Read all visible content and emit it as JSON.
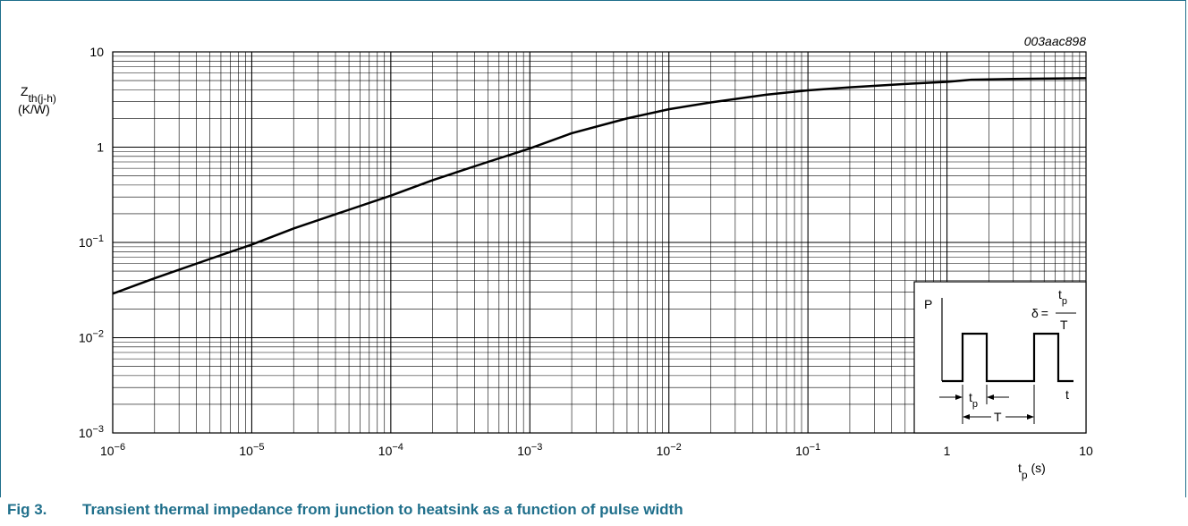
{
  "figure": {
    "id": "003aac898",
    "caption_label": "Fig 3.",
    "caption_text": "Transient thermal impedance from junction to heatsink as a function of pulse width",
    "caption_color": "#1f6f8b"
  },
  "chart_data": {
    "type": "line",
    "title": "",
    "xlabel": {
      "main": "t",
      "sub": "p",
      "unit": " (s)"
    },
    "ylabel": {
      "main": "Z",
      "sub": "th(j-h)",
      "unit": "(K/W)"
    },
    "x_scale": "log",
    "y_scale": "log",
    "xlim": [
      1e-06,
      10
    ],
    "ylim": [
      0.001,
      10
    ],
    "grid": true,
    "x_ticks": [
      {
        "value": 1e-06,
        "base": "10",
        "exp": "−6"
      },
      {
        "value": 1e-05,
        "base": "10",
        "exp": "−5"
      },
      {
        "value": 0.0001,
        "base": "10",
        "exp": "−4"
      },
      {
        "value": 0.001,
        "base": "10",
        "exp": "−3"
      },
      {
        "value": 0.01,
        "base": "10",
        "exp": "−2"
      },
      {
        "value": 0.1,
        "base": "10",
        "exp": "−1"
      },
      {
        "value": 1,
        "base": "1",
        "exp": ""
      },
      {
        "value": 10,
        "base": "10",
        "exp": ""
      }
    ],
    "y_ticks": [
      {
        "value": 0.001,
        "base": "10",
        "exp": "−3"
      },
      {
        "value": 0.01,
        "base": "10",
        "exp": "−2"
      },
      {
        "value": 0.1,
        "base": "10",
        "exp": "−1"
      },
      {
        "value": 1,
        "base": "1",
        "exp": ""
      },
      {
        "value": 10,
        "base": "10",
        "exp": ""
      }
    ],
    "series": [
      {
        "x": [
          1e-06,
          2e-06,
          5e-06,
          1e-05,
          2e-05,
          5e-05,
          0.0001,
          0.0002,
          0.0005,
          0.001,
          0.002,
          0.005,
          0.01,
          0.02,
          0.05,
          0.1,
          0.2,
          0.5,
          1,
          1.5,
          3,
          10
        ],
        "y": [
          0.029,
          0.042,
          0.067,
          0.095,
          0.14,
          0.22,
          0.31,
          0.45,
          0.7,
          0.97,
          1.4,
          2.0,
          2.5,
          2.95,
          3.55,
          3.95,
          4.25,
          4.6,
          4.85,
          5.1,
          5.2,
          5.3
        ]
      }
    ],
    "inset": {
      "p_label": "P",
      "t_label": "t",
      "tp_main": "t",
      "tp_sub": "p",
      "period_label": "T",
      "delta_symbol": "δ",
      "equals": "=",
      "frac_num_main": "t",
      "frac_num_sub": "p",
      "frac_den": "T"
    }
  }
}
